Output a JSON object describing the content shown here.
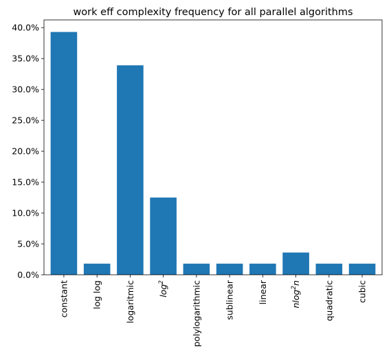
{
  "chart_data": {
    "type": "bar",
    "title": "work eff complexity frequency for all parallel algorithms",
    "xlabel": "",
    "ylabel": "",
    "categories": [
      {
        "label": "constant",
        "base": "constant",
        "italic": false,
        "sup": "",
        "tail": ""
      },
      {
        "label": "log log",
        "base": "log log",
        "italic": false,
        "sup": "",
        "tail": ""
      },
      {
        "label": "logaritmic",
        "base": "logaritmic",
        "italic": false,
        "sup": "",
        "tail": ""
      },
      {
        "label": "log²",
        "base": "log",
        "italic": true,
        "sup": "2",
        "tail": ""
      },
      {
        "label": "polylogarithmic",
        "base": "polylogarithmic",
        "italic": false,
        "sup": "",
        "tail": ""
      },
      {
        "label": "sublinear",
        "base": "sublinear",
        "italic": false,
        "sup": "",
        "tail": ""
      },
      {
        "label": "linear",
        "base": "linear",
        "italic": false,
        "sup": "",
        "tail": ""
      },
      {
        "label": "nlog²n",
        "base": "nlog",
        "italic": true,
        "sup": "2",
        "tail": "n"
      },
      {
        "label": "quadratic",
        "base": "quadratic",
        "italic": false,
        "sup": "",
        "tail": ""
      },
      {
        "label": "cubic",
        "base": "cubic",
        "italic": false,
        "sup": "",
        "tail": ""
      }
    ],
    "values": [
      39.3,
      1.8,
      33.9,
      12.5,
      1.8,
      1.8,
      1.8,
      3.6,
      1.8,
      1.8
    ],
    "ylim": [
      0,
      41.25
    ],
    "yticks": [
      0,
      5,
      10,
      15,
      20,
      25,
      30,
      35,
      40
    ],
    "ytick_labels": [
      "0.0%",
      "5.0%",
      "10.0%",
      "15.0%",
      "20.0%",
      "25.0%",
      "30.0%",
      "35.0%",
      "40.0%"
    ],
    "bar_color": "#1f77b4",
    "grid": false,
    "legend": "none"
  }
}
